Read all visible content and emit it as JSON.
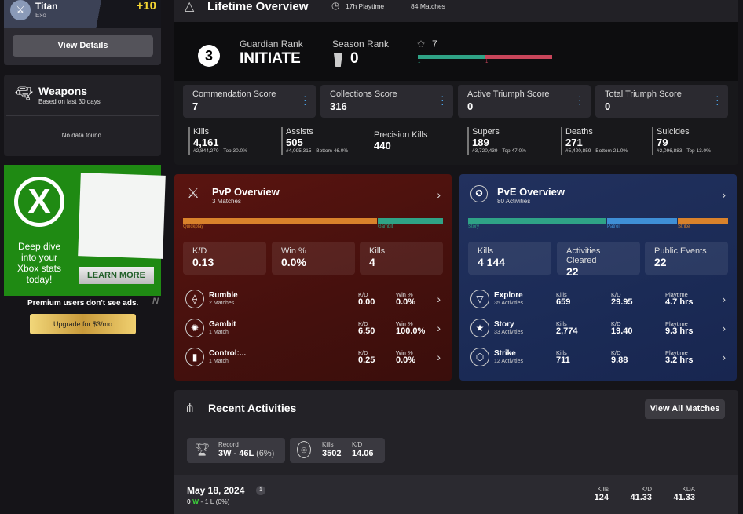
{
  "character": {
    "class": "Titan",
    "race": "Exo",
    "power_bonus": "+10",
    "view_details": "View Details"
  },
  "weapons": {
    "title": "Weapons",
    "subtitle": "Based on last 30 days",
    "empty": "No data found."
  },
  "ad": {
    "headline": "Deep dive into your Xbox stats today!",
    "cta": "LEARN MORE",
    "premium_note": "Premium users don't see ads.",
    "upgrade": "Upgrade for $3/mo"
  },
  "lifetime": {
    "title": "Lifetime Overview",
    "playtime": "17h Playtime",
    "matches": "84 Matches",
    "guardian_rank_num": "3",
    "guardian_rank_label": "Guardian Rank",
    "guardian_rank": "INITIATE",
    "season_rank_label": "Season Rank",
    "season_rank": "0",
    "triumph_stars": "7",
    "bar_left": "1",
    "bar_right": "1",
    "scores": [
      {
        "label": "Commendation Score",
        "value": "7"
      },
      {
        "label": "Collections Score",
        "value": "316"
      },
      {
        "label": "Active Triumph Score",
        "value": "0"
      },
      {
        "label": "Total Triumph Score",
        "value": "0"
      }
    ],
    "stats": [
      {
        "label": "Kills",
        "value": "4,161",
        "rank": "#2,844,270 - Top 30.0%"
      },
      {
        "label": "Assists",
        "value": "505",
        "rank": "#4,095,315 - Bottom 46.0%"
      },
      {
        "label": "Precision Kills",
        "value": "440",
        "rank": ""
      },
      {
        "label": "Supers",
        "value": "189",
        "rank": "#3,720,439 - Top 47.0%"
      },
      {
        "label": "Deaths",
        "value": "271",
        "rank": "#5,420,859 - Bottom 21.0%"
      },
      {
        "label": "Suicides",
        "value": "79",
        "rank": "#2,096,883 - Top 13.0%"
      }
    ]
  },
  "pvp": {
    "title": "PvP Overview",
    "subtitle": "3 Matches",
    "seg_left": "Quickplay",
    "seg_right": "Gambit",
    "boxes": [
      {
        "label": "K/D",
        "value": "0.13"
      },
      {
        "label": "Win %",
        "value": "0.0%"
      },
      {
        "label": "Kills",
        "value": "4"
      }
    ],
    "modes": [
      {
        "name": "Rumble",
        "sub": "2 Matches",
        "kd": "0.00",
        "win": "0.0%"
      },
      {
        "name": "Gambit",
        "sub": "1 Match",
        "kd": "6.50",
        "win": "100.0%"
      },
      {
        "name": "Control:...",
        "sub": "1 Match",
        "kd": "0.25",
        "win": "0.0%"
      }
    ],
    "kd_label": "K/D",
    "win_label": "Win %"
  },
  "pve": {
    "title": "PvE Overview",
    "subtitle": "80 Activities",
    "segs": [
      "Story",
      "Patrol",
      "Strike"
    ],
    "boxes": [
      {
        "label": "Kills",
        "value": "4 144"
      },
      {
        "label": "Activities Cleared",
        "value": "22"
      },
      {
        "label": "Public Events",
        "value": "22"
      }
    ],
    "modes": [
      {
        "name": "Explore",
        "sub": "35 Activities",
        "kills": "659",
        "kd": "29.95",
        "play": "4.7 hrs"
      },
      {
        "name": "Story",
        "sub": "33 Activities",
        "kills": "2,774",
        "kd": "19.40",
        "play": "9.3 hrs"
      },
      {
        "name": "Strike",
        "sub": "12 Activities",
        "kills": "711",
        "kd": "9.88",
        "play": "3.2 hrs"
      }
    ],
    "kills_label": "Kills",
    "kd_label": "K/D",
    "play_label": "Playtime"
  },
  "recent": {
    "title": "Recent Activities",
    "view_all": "View All Matches",
    "record_label": "Record",
    "record": "3W - 46L",
    "record_pct": "(6%)",
    "kills_label": "Kills",
    "kills": "3502",
    "kd_label": "K/D",
    "kd": "14.06",
    "day": {
      "date": "May 18, 2024",
      "count": "1",
      "w": "0",
      "w_label": "W",
      "l": "- 1 L (0%)",
      "kills_label": "Kills",
      "kills": "124",
      "kd_label": "K/D",
      "kd": "41.33",
      "kda_label": "KDA",
      "kda": "41.33"
    }
  },
  "colors": {
    "green": "#2fa386",
    "red": "#c8455a",
    "orange": "#d9822b",
    "pvp_bg": "#4e0f0d",
    "pve_bg": "#1b2c58",
    "ad_green": "#1f8a13"
  }
}
